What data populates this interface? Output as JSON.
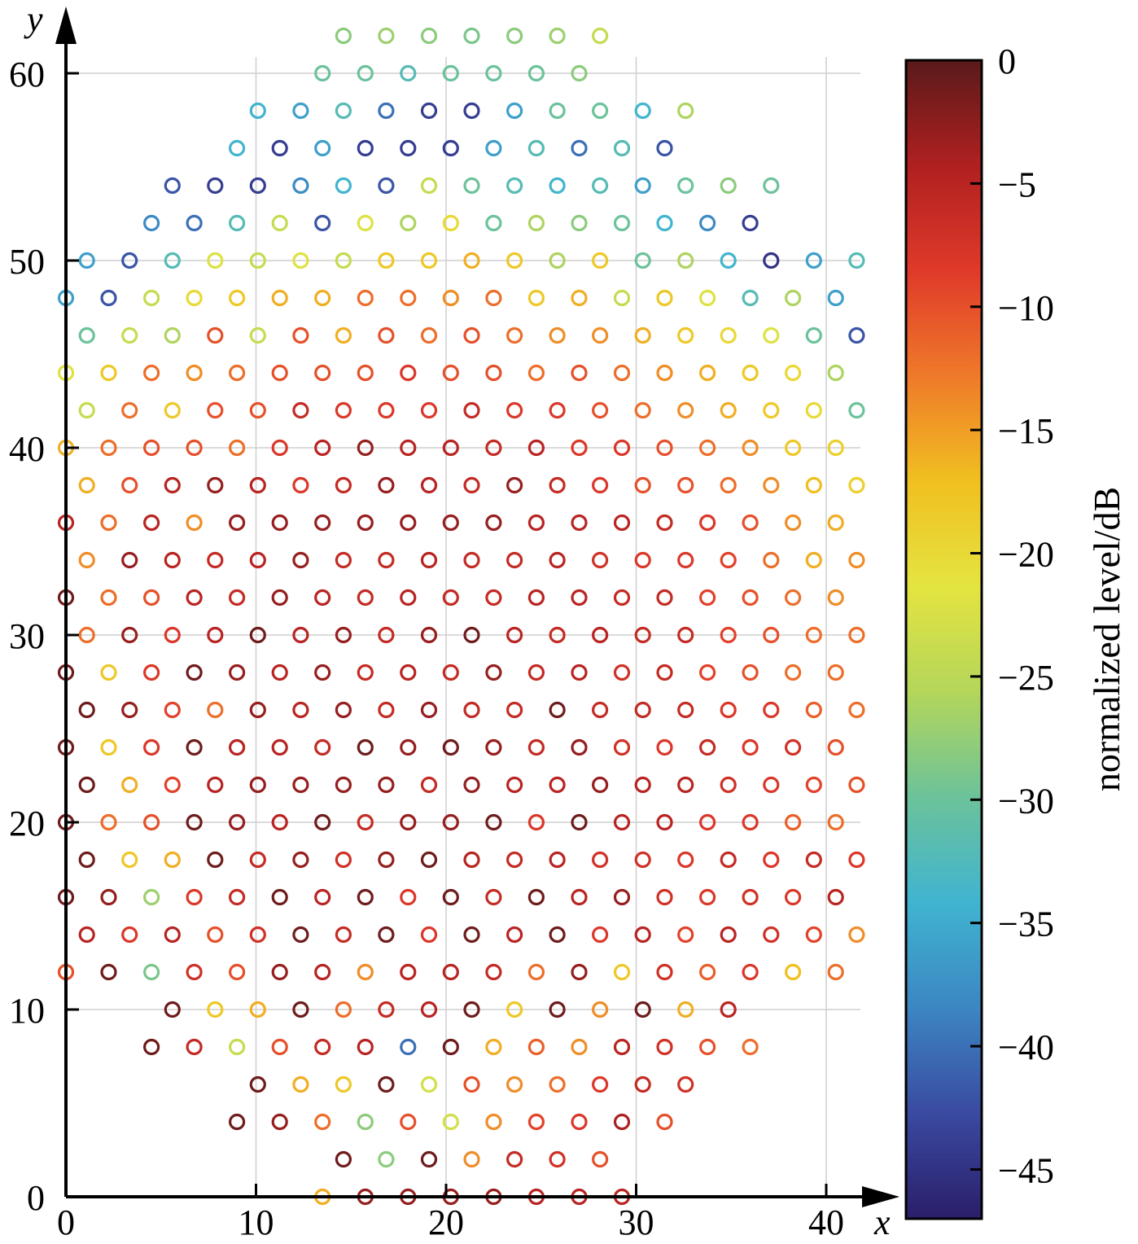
{
  "chart_data": {
    "type": "scatter",
    "title": "",
    "xlabel": "x",
    "ylabel": "y",
    "xlim": [
      0,
      42.5
    ],
    "ylim": [
      0,
      61
    ],
    "xticks": [
      "0",
      "10",
      "20",
      "30",
      "40"
    ],
    "yticks": [
      "0",
      "10",
      "20",
      "30",
      "40",
      "50",
      "60"
    ],
    "grid": true,
    "marker": "open-circle",
    "colorbar": {
      "label": "normalized level/dB",
      "range": [
        -47,
        0
      ],
      "ticks": [
        "0",
        "−5",
        "−10",
        "−15",
        "−20",
        "−25",
        "−30",
        "−35",
        "−40",
        "−45"
      ],
      "colormap": [
        "#5a1a1a",
        "#b02020",
        "#e03a2a",
        "#ef7a2a",
        "#f0c020",
        "#e4e440",
        "#b4d65a",
        "#6cc29a",
        "#40b4d0",
        "#3c86c2",
        "#3a4aa0",
        "#2a1e6a"
      ]
    },
    "rows": [
      {
        "y": 0,
        "x_start": 13.5,
        "levels": [
          -16,
          -3,
          -3,
          -3,
          -3,
          -5,
          -5,
          -5
        ]
      },
      {
        "y": 2,
        "x_start": 14.6,
        "levels": [
          -1,
          -28,
          -1,
          -14,
          -6,
          -7,
          -10
        ]
      },
      {
        "y": 4,
        "x_start": 9,
        "levels": [
          -1,
          -3,
          -12,
          -28,
          -10,
          -23,
          -14,
          -9,
          -8,
          -4,
          -10
        ]
      },
      {
        "y": 6,
        "x_start": 10.1,
        "levels": [
          -1,
          -16,
          -18,
          -1,
          -23,
          -10,
          -14,
          -12,
          -8,
          -6,
          -7
        ]
      },
      {
        "y": 8,
        "x_start": 4.5,
        "levels": [
          -1,
          -6,
          -24,
          -10,
          -6,
          -5,
          -40,
          -1,
          -16,
          -11,
          -14,
          -5,
          -7,
          -10,
          -12
        ]
      },
      {
        "y": 10,
        "x_start": 5.6,
        "levels": [
          -1,
          -18,
          -16,
          -1,
          -12,
          -6,
          -5,
          -1,
          -18,
          -1,
          -14,
          -1,
          -16,
          -5
        ]
      },
      {
        "y": 12,
        "x_start": 0,
        "levels": [
          -10,
          -1,
          -29,
          -7,
          -10,
          -3,
          -5,
          -14,
          -5,
          -5,
          -6,
          -12,
          -3,
          -18,
          -7,
          -11,
          -8,
          -17,
          -12
        ]
      },
      {
        "y": 14,
        "x_start": 1.1,
        "levels": [
          -5,
          -8,
          -5,
          -10,
          -7,
          -1,
          -6,
          -1,
          -8,
          -1,
          -5,
          -1,
          -8,
          -5,
          -9,
          -5,
          -7,
          -9,
          -14
        ]
      },
      {
        "y": 16,
        "x_start": 0,
        "levels": [
          -1,
          -3,
          -27,
          -8,
          -6,
          -1,
          -5,
          -1,
          -8,
          -1,
          -6,
          -1,
          -5,
          -3,
          -7,
          -8,
          -7,
          -8,
          -5
        ]
      },
      {
        "y": 18,
        "x_start": 1.1,
        "levels": [
          -1,
          -18,
          -16,
          -1,
          -6,
          -3,
          -7,
          -3,
          -1,
          -5,
          -6,
          -5,
          -7,
          -7,
          -8,
          -6,
          -8,
          -6,
          -8
        ]
      },
      {
        "y": 20,
        "x_start": 0,
        "levels": [
          -1,
          -12,
          -10,
          -1,
          -3,
          -5,
          -1,
          -6,
          -3,
          -3,
          -1,
          -8,
          -1,
          -5,
          -5,
          -8,
          -8,
          -11,
          -12
        ]
      },
      {
        "y": 22,
        "x_start": 1.1,
        "levels": [
          -1,
          -16,
          -9,
          -5,
          -3,
          -3,
          -3,
          -3,
          -6,
          -3,
          -5,
          -5,
          -3,
          -5,
          -5,
          -7,
          -8,
          -9,
          -10
        ]
      },
      {
        "y": 24,
        "x_start": 0,
        "levels": [
          -1,
          -18,
          -8,
          -1,
          -5,
          -5,
          -6,
          -1,
          -3,
          -1,
          -3,
          -6,
          -3,
          -7,
          -8,
          -6,
          -8,
          -7,
          -10
        ]
      },
      {
        "y": 26,
        "x_start": 1.1,
        "levels": [
          -1,
          -3,
          -9,
          -12,
          -3,
          -5,
          -3,
          -6,
          -3,
          -6,
          -6,
          -1,
          -6,
          -6,
          -6,
          -8,
          -8,
          -11,
          -12
        ]
      },
      {
        "y": 28,
        "x_start": 0,
        "levels": [
          -1,
          -18,
          -8,
          -1,
          -3,
          -5,
          -3,
          -6,
          -5,
          -6,
          -3,
          -6,
          -5,
          -7,
          -6,
          -9,
          -10,
          -12,
          -12
        ]
      },
      {
        "y": 30,
        "x_start": 1.1,
        "levels": [
          -12,
          -3,
          -8,
          -5,
          -1,
          -5,
          -3,
          -6,
          -3,
          -1,
          -5,
          -6,
          -5,
          -6,
          -6,
          -9,
          -10,
          -12,
          -12
        ]
      },
      {
        "y": 32,
        "x_start": 0,
        "levels": [
          -1,
          -12,
          -10,
          -5,
          -6,
          -3,
          -5,
          -6,
          -5,
          -6,
          -6,
          -5,
          -5,
          -6,
          -6,
          -9,
          -10,
          -12,
          -14
        ]
      },
      {
        "y": 34,
        "x_start": 1.1,
        "levels": [
          -14,
          -3,
          -5,
          -6,
          -5,
          -3,
          -6,
          -6,
          -5,
          -6,
          -6,
          -5,
          -7,
          -8,
          -8,
          -9,
          -12,
          -16,
          -14
        ]
      },
      {
        "y": 36,
        "x_start": 0,
        "levels": [
          -5,
          -12,
          -5,
          -14,
          -3,
          -3,
          -3,
          -3,
          -3,
          -3,
          -3,
          -5,
          -5,
          -5,
          -6,
          -8,
          -10,
          -14,
          -16
        ]
      },
      {
        "y": 38,
        "x_start": 1.1,
        "levels": [
          -16,
          -10,
          -5,
          -3,
          -5,
          -8,
          -6,
          -3,
          -5,
          -6,
          -3,
          -6,
          -8,
          -10,
          -10,
          -12,
          -14,
          -17,
          -19
        ]
      },
      {
        "y": 40,
        "x_start": 0,
        "levels": [
          -16,
          -12,
          -10,
          -10,
          -12,
          -8,
          -5,
          -3,
          -5,
          -5,
          -6,
          -5,
          -8,
          -8,
          -10,
          -12,
          -14,
          -18,
          -19
        ]
      },
      {
        "y": 42,
        "x_start": 1.1,
        "levels": [
          -24,
          -12,
          -18,
          -10,
          -10,
          -6,
          -8,
          -8,
          -8,
          -6,
          -8,
          -8,
          -10,
          -12,
          -14,
          -16,
          -18,
          -20,
          -30
        ]
      },
      {
        "y": 44,
        "x_start": 0,
        "levels": [
          -22,
          -18,
          -12,
          -14,
          -12,
          -10,
          -10,
          -10,
          -8,
          -10,
          -10,
          -12,
          -10,
          -12,
          -14,
          -16,
          -18,
          -20,
          -26
        ]
      },
      {
        "y": 46,
        "x_start": 1.1,
        "levels": [
          -30,
          -24,
          -26,
          -10,
          -24,
          -10,
          -16,
          -10,
          -12,
          -10,
          -12,
          -14,
          -14,
          -16,
          -18,
          -20,
          -22,
          -30,
          -42
        ]
      },
      {
        "y": 48,
        "x_start": 0,
        "levels": [
          -36,
          -42,
          -24,
          -20,
          -18,
          -16,
          -16,
          -12,
          -12,
          -14,
          -12,
          -18,
          -16,
          -24,
          -18,
          -22,
          -32,
          -26,
          -36
        ]
      },
      {
        "y": 50,
        "x_start": 1.1,
        "levels": [
          -36,
          -42,
          -32,
          -22,
          -24,
          -22,
          -24,
          -18,
          -18,
          -16,
          -18,
          -26,
          -18,
          -30,
          -26,
          -34,
          -45,
          -36,
          -32
        ]
      },
      {
        "y": 52,
        "x_start": 4.5,
        "levels": [
          -38,
          -40,
          -32,
          -24,
          -42,
          -22,
          -26,
          -20,
          -30,
          -26,
          -28,
          -30,
          -34,
          -38,
          -44
        ]
      },
      {
        "y": 54,
        "x_start": 5.6,
        "levels": [
          -42,
          -44,
          -44,
          -38,
          -34,
          -42,
          -24,
          -30,
          -32,
          -34,
          -32,
          -36,
          -30,
          -28,
          -30
        ]
      },
      {
        "y": 56,
        "x_start": 9,
        "levels": [
          -34,
          -44,
          -36,
          -44,
          -44,
          -44,
          -36,
          -32,
          -40,
          -32,
          -42
        ]
      },
      {
        "y": 58,
        "x_start": 10.1,
        "levels": [
          -34,
          -36,
          -32,
          -40,
          -44,
          -44,
          -36,
          -30,
          -30,
          -34,
          -26
        ]
      },
      {
        "y": 60,
        "x_start": 13.5,
        "levels": [
          -30,
          -30,
          -32,
          -30,
          -30,
          -30,
          -28
        ]
      },
      {
        "y": 62,
        "x_start": 14.6,
        "levels": [
          -28,
          -27,
          -28,
          -29,
          -28,
          -27,
          -24
        ]
      }
    ]
  }
}
